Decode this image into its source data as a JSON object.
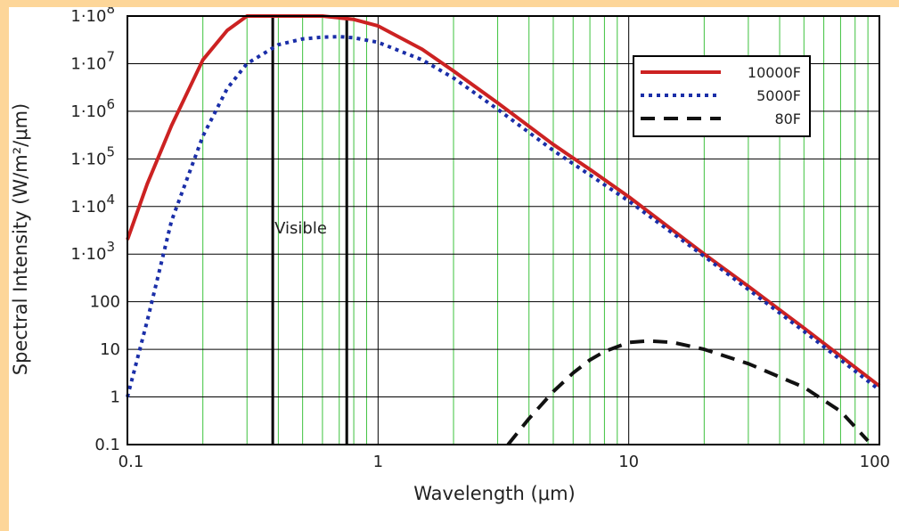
{
  "chart_data": {
    "type": "line",
    "xlabel": "Wavelength (μm)",
    "ylabel": "Spectral Intensity (W/m²/μm)",
    "x_scale": "log",
    "y_scale": "log",
    "xlim": [
      0.1,
      100
    ],
    "ylim": [
      0.1,
      100000000
    ],
    "grid": true,
    "legend_position": "top-right",
    "x_ticks": [
      {
        "value": 0.1,
        "label": "0.1"
      },
      {
        "value": 1,
        "label": "1"
      },
      {
        "value": 10,
        "label": "10"
      },
      {
        "value": 100,
        "label": "100"
      }
    ],
    "y_ticks": [
      {
        "value": 0.1,
        "label": "0.1"
      },
      {
        "value": 1,
        "label": "1"
      },
      {
        "value": 10,
        "label": "10"
      },
      {
        "value": 100,
        "label": "100"
      },
      {
        "value": 1000,
        "label": "1·10",
        "exp": "3"
      },
      {
        "value": 10000,
        "label": "1·10",
        "exp": "4"
      },
      {
        "value": 100000,
        "label": "1·10",
        "exp": "5"
      },
      {
        "value": 1000000,
        "label": "1·10",
        "exp": "6"
      },
      {
        "value": 10000000,
        "label": "1·10",
        "exp": "7"
      },
      {
        "value": 100000000,
        "label": "1·10",
        "exp": "8"
      }
    ],
    "series": [
      {
        "name": "10000F",
        "color": "#cc2222",
        "style": "solid",
        "x": [
          0.1,
          0.12,
          0.15,
          0.2,
          0.25,
          0.3,
          0.4,
          0.5,
          0.6,
          0.8,
          1,
          1.5,
          2,
          3,
          5,
          7,
          10,
          20,
          30,
          50,
          100
        ],
        "y": [
          2000,
          30000,
          500000,
          12000000,
          50000000,
          100000000,
          115000000,
          115000000,
          110000000,
          85000000,
          62000000,
          20000000,
          7000000,
          1500000,
          200000,
          60000,
          16000,
          1000,
          210,
          28,
          1.7
        ]
      },
      {
        "name": "5000F",
        "color": "#1a2ea8",
        "style": "dotted",
        "x": [
          0.1,
          0.12,
          0.15,
          0.2,
          0.25,
          0.3,
          0.4,
          0.5,
          0.6,
          0.7,
          0.8,
          1,
          1.5,
          2,
          3,
          5,
          10,
          20,
          50,
          100
        ],
        "y": [
          1,
          40,
          5000,
          300000,
          3000000,
          10000000,
          25000000,
          33000000,
          36000000,
          37000000,
          35000000,
          28000000,
          12000000,
          5000000,
          1100000,
          150000,
          13000,
          900,
          24,
          1.4
        ]
      },
      {
        "name": "80F",
        "color": "#111111",
        "style": "dashed",
        "x": [
          3.3,
          4,
          5,
          6,
          7,
          8,
          10,
          12,
          15,
          20,
          30,
          50,
          70,
          90
        ],
        "y": [
          0.1,
          0.35,
          1.3,
          3.2,
          6,
          9,
          14,
          15,
          14,
          10,
          5,
          1.6,
          0.5,
          0.12
        ]
      }
    ],
    "annotations": [
      {
        "text": "Visible",
        "x_start": 0.38,
        "x_end": 0.75
      }
    ]
  },
  "colors": {
    "background": "#fdd699",
    "minor_grid": "#3ec23e",
    "major_grid": "#000000"
  }
}
